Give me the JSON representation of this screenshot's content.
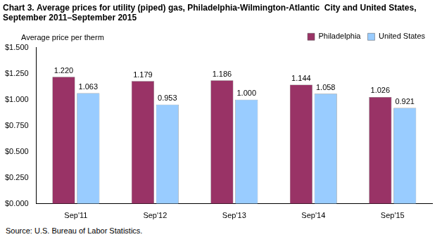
{
  "chart_data": {
    "type": "bar",
    "title": [
      "Chart 3. Average prices for utility (piped) gas, Philadelphia-Wilmington-Atlantic  City and United States,",
      "September 2011–September 2015"
    ],
    "y_label": "Average price per therm",
    "source": "Source: U.S. Bureau of Labor Statistics.",
    "categories": [
      "Sep'11",
      "Sep'12",
      "Sep'13",
      "Sep'14",
      "Sep'15"
    ],
    "series": [
      {
        "name": "Philadelphia",
        "color": "#993366",
        "values": [
          1.22,
          1.179,
          1.186,
          1.144,
          1.026
        ],
        "value_labels": [
          "1.220",
          "1.179",
          "1.186",
          "1.144",
          "1.026"
        ]
      },
      {
        "name": "United States",
        "color": "#99ccff",
        "values": [
          1.063,
          0.953,
          1.0,
          1.058,
          0.921
        ],
        "value_labels": [
          "1.063",
          "0.953",
          "1.000",
          "1.058",
          "0.921"
        ]
      }
    ],
    "ylim": [
      0,
      1.5
    ],
    "yticks": [
      {
        "value": 0,
        "label": "$0.000"
      },
      {
        "value": 0.25,
        "label": "$0.250"
      },
      {
        "value": 0.5,
        "label": "$0.500"
      },
      {
        "value": 0.75,
        "label": "$0.750"
      },
      {
        "value": 1,
        "label": "$1.000"
      },
      {
        "value": 1.25,
        "label": "$1.250"
      },
      {
        "value": 1.5,
        "label": "$1.500"
      }
    ],
    "grid": false,
    "legend": "top-right",
    "data_labels": true
  }
}
